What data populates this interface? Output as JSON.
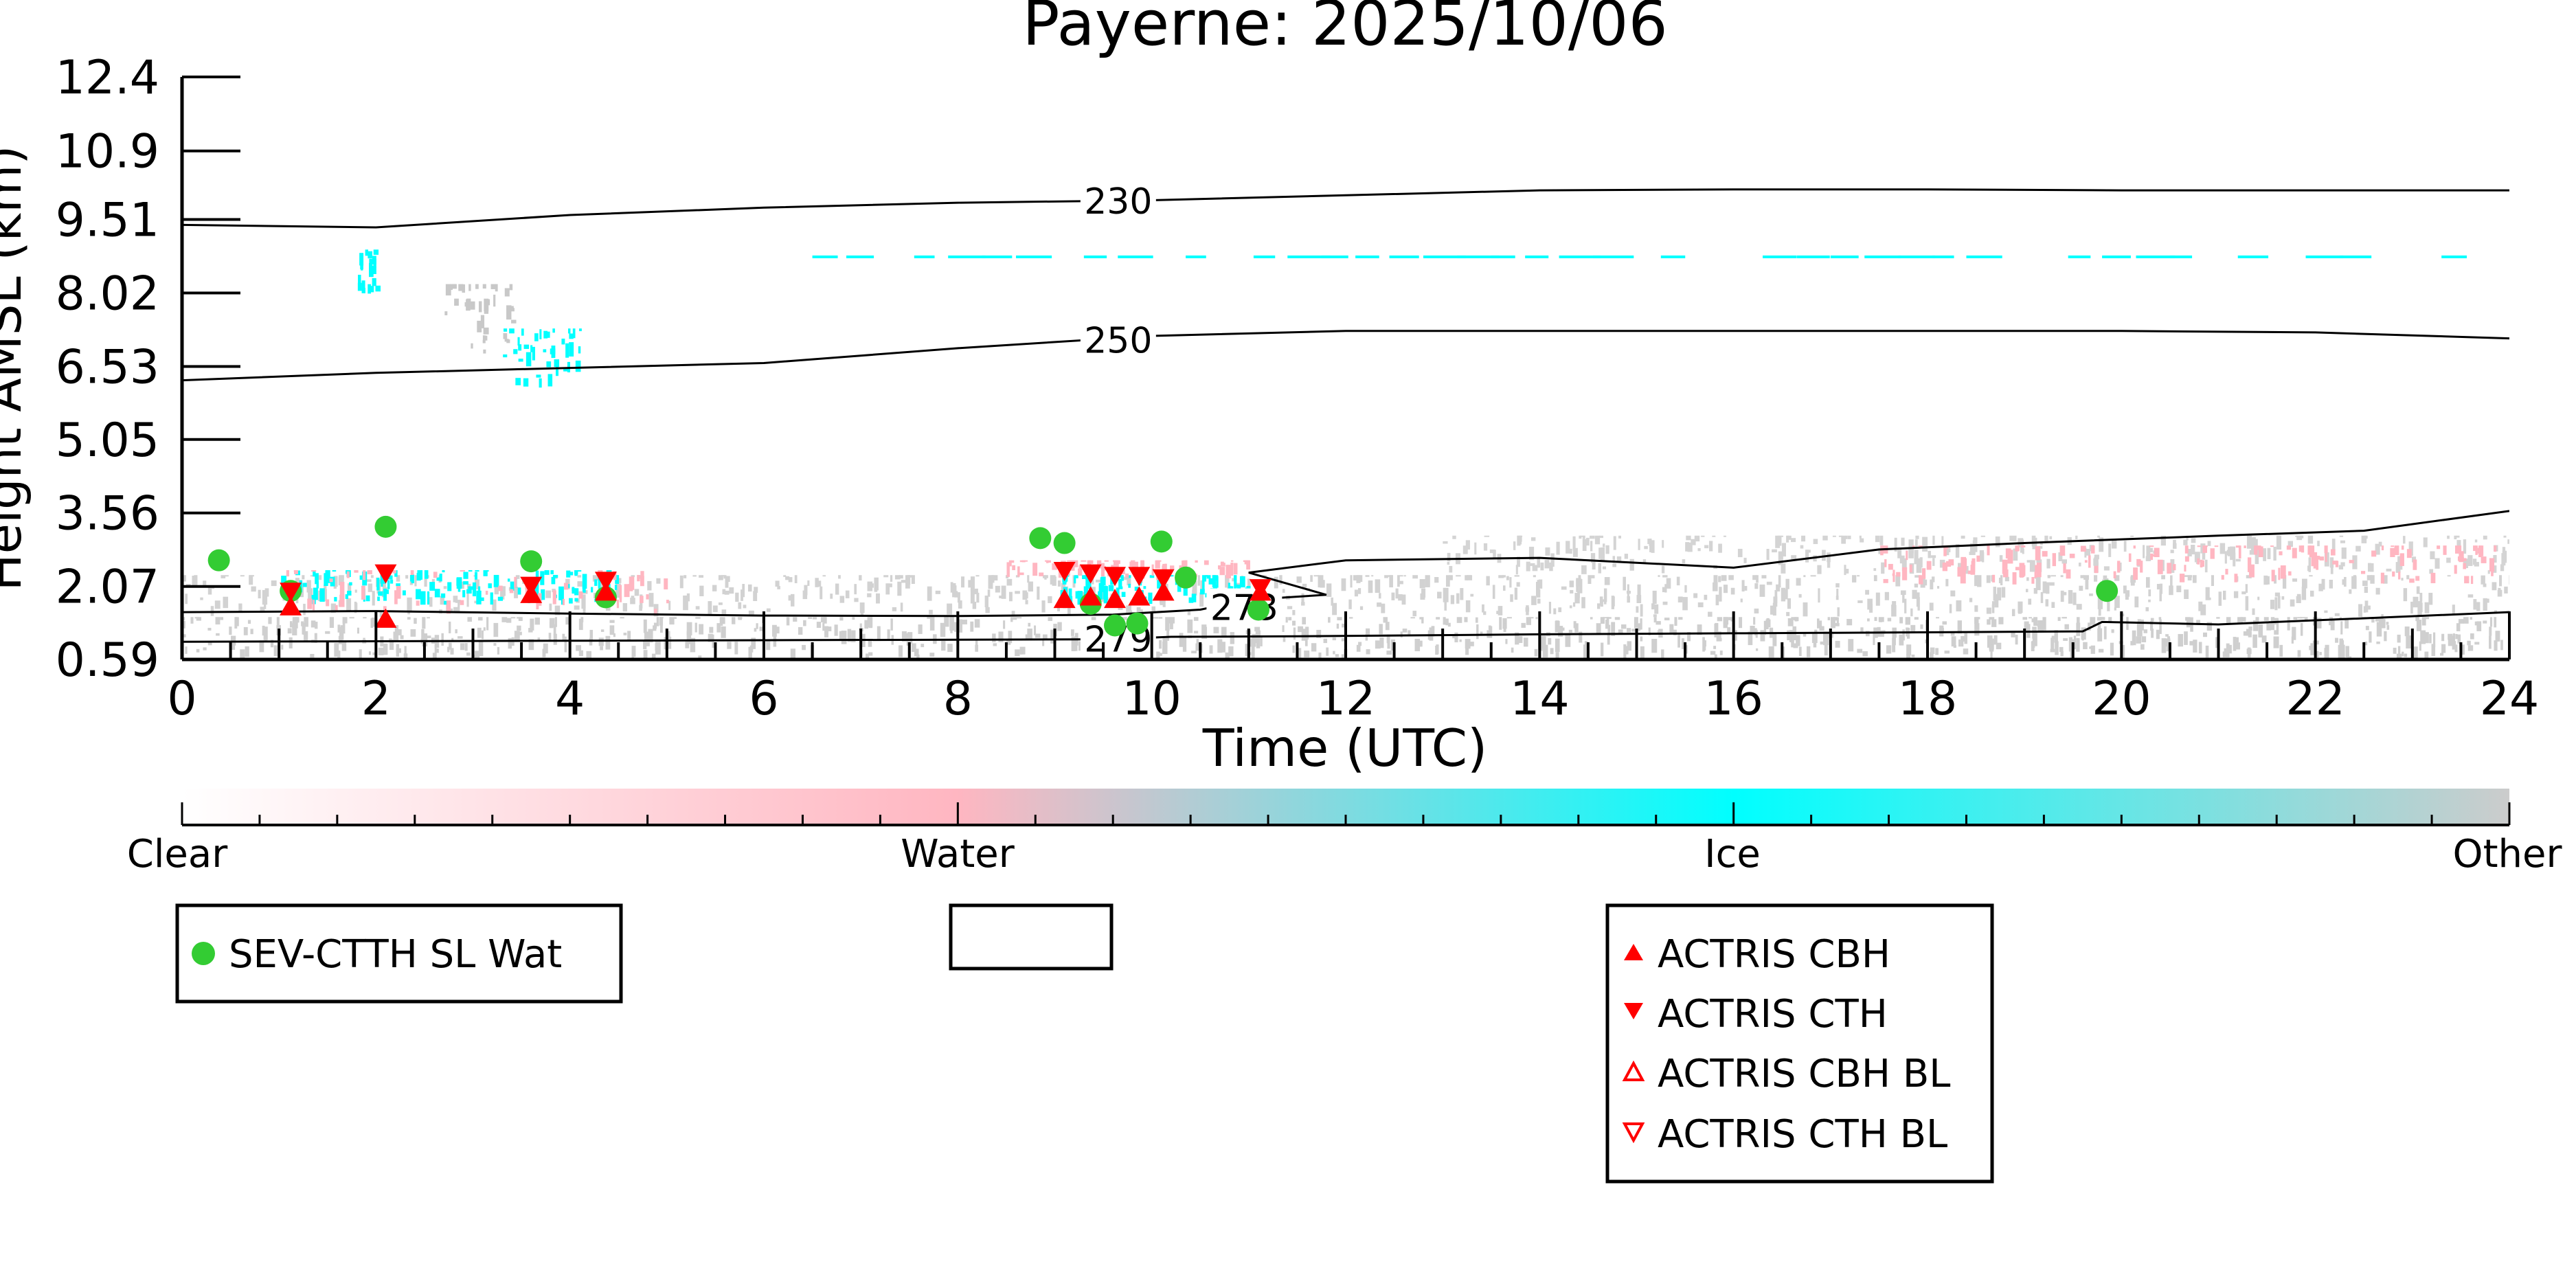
{
  "chart_data": {
    "type": "scatter",
    "title": "Payerne: 2025/10/06",
    "xlabel": "Time (UTC)",
    "ylabel": "Height AMSL (km)",
    "xlim": [
      0,
      24
    ],
    "ylim": [
      0.59,
      12.4
    ],
    "x_ticks": [
      "0",
      "2",
      "4",
      "6",
      "8",
      "10",
      "12",
      "14",
      "16",
      "18",
      "20",
      "22",
      "24"
    ],
    "y_ticks": [
      "0.59",
      "2.07",
      "3.56",
      "5.05",
      "6.53",
      "8.02",
      "9.51",
      "10.9",
      "12.4"
    ],
    "grid": false,
    "colorbar": {
      "labels": [
        "Clear",
        "Water",
        "Ice",
        "Other"
      ],
      "colors": [
        "#ffffff",
        "#ffb6c1",
        "#00ffff",
        "#cccccc"
      ]
    },
    "isotherms": [
      {
        "label": "230",
        "x": [
          0,
          2,
          4,
          6,
          8,
          10,
          12,
          14,
          16,
          18,
          20,
          22,
          24
        ],
        "y": [
          9.4,
          9.35,
          9.6,
          9.75,
          9.85,
          9.9,
          10.0,
          10.1,
          10.12,
          10.12,
          10.1,
          10.1,
          10.1
        ],
        "label_x": 9.3
      },
      {
        "label": "250",
        "x": [
          0,
          2,
          4,
          6,
          8,
          10,
          12,
          14,
          16,
          18,
          20,
          22,
          24
        ],
        "y": [
          6.25,
          6.4,
          6.5,
          6.6,
          6.9,
          7.15,
          7.25,
          7.25,
          7.25,
          7.25,
          7.25,
          7.22,
          7.1
        ],
        "label_x": 9.3
      },
      {
        "label": "273",
        "x": [
          0,
          2,
          4,
          6,
          8,
          9.6,
          10.5,
          11.0,
          11.8,
          11.0,
          12,
          14,
          16,
          17.5,
          19,
          21,
          22.5,
          24
        ],
        "y": [
          1.55,
          1.57,
          1.52,
          1.48,
          1.47,
          1.5,
          1.6,
          1.8,
          1.9,
          2.35,
          2.6,
          2.65,
          2.45,
          2.82,
          2.95,
          3.1,
          3.2,
          3.6
        ],
        "label_x": 10.6
      },
      {
        "label": "279",
        "x": [
          0,
          6,
          9.6,
          10.2,
          11.5,
          14,
          16,
          18,
          19.6,
          19.8,
          21,
          24
        ],
        "y": [
          0.95,
          0.98,
          1.0,
          1.05,
          1.06,
          1.1,
          1.12,
          1.14,
          1.16,
          1.35,
          1.3,
          1.55
        ],
        "label_x": 9.3
      }
    ],
    "series": [
      {
        "name": "SEV-CTTH SL Wat",
        "color": "#33cc33",
        "marker": "circle",
        "x": [
          0.38,
          1.12,
          2.1,
          3.6,
          4.37,
          8.85,
          9.1,
          9.37,
          9.62,
          9.85,
          10.1,
          10.35,
          11.1,
          19.85
        ],
        "y": [
          2.6,
          1.98,
          3.28,
          2.58,
          1.85,
          3.05,
          2.95,
          1.72,
          1.28,
          1.32,
          2.98,
          2.25,
          1.6,
          1.98
        ]
      },
      {
        "name": "ACTRIS CBH",
        "color": "#ff0000",
        "marker": "triangle-up",
        "x": [
          1.12,
          2.1,
          3.6,
          4.37,
          9.1,
          9.37,
          9.62,
          9.87,
          10.12,
          11.12
        ],
        "y": [
          1.65,
          1.4,
          1.9,
          1.95,
          1.8,
          1.85,
          1.8,
          1.85,
          1.95,
          1.95
        ]
      },
      {
        "name": "ACTRIS CTH",
        "color": "#ff0000",
        "marker": "triangle-down",
        "x": [
          1.12,
          2.1,
          3.6,
          4.37,
          9.1,
          9.37,
          9.62,
          9.87,
          10.12,
          11.12
        ],
        "y": [
          1.98,
          2.35,
          2.1,
          2.2,
          2.4,
          2.35,
          2.3,
          2.3,
          2.25,
          2.05
        ]
      },
      {
        "name": "ACTRIS CBH BL",
        "color": "#ff0000",
        "marker": "triangle-up-open",
        "x": [],
        "y": []
      },
      {
        "name": "ACTRIS CTH BL",
        "color": "#ff0000",
        "marker": "triangle-down-open",
        "x": [],
        "y": []
      }
    ],
    "legends": [
      {
        "items": [
          "SEV-CTTH SL Wat"
        ]
      },
      {
        "items": []
      },
      {
        "items": [
          "ACTRIS CBH",
          "ACTRIS CTH",
          "ACTRIS CBH BL",
          "ACTRIS CTH BL"
        ]
      }
    ]
  }
}
